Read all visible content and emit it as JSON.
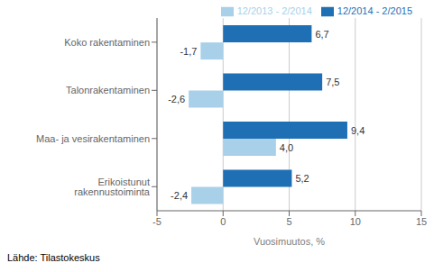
{
  "chart_data": {
    "type": "bar",
    "orientation": "horizontal",
    "categories": [
      "Koko rakentaminen",
      "Talonrakentaminen",
      "Maa- ja vesirakentaminen",
      "Erikoistunut rakennustoiminta"
    ],
    "series": [
      {
        "name": "12/2014 - 2/2015",
        "color": "#1f6fb5",
        "values": [
          6.7,
          7.5,
          9.4,
          5.2
        ],
        "value_labels": [
          "6,7",
          "7,5",
          "9,4",
          "5,2"
        ]
      },
      {
        "name": "12/2013 - 2/2014",
        "color": "#a8d0e8",
        "values": [
          -1.7,
          -2.6,
          4.0,
          -2.4
        ],
        "value_labels": [
          "-1,7",
          "-2,6",
          "4,0",
          "-2,4"
        ]
      }
    ],
    "xlabel": "Vuosimuutos, %",
    "xlim": [
      -5,
      15
    ],
    "xticks": [
      -5,
      0,
      5,
      10,
      15
    ],
    "grid": true,
    "legend": "upper right",
    "data_labels": true,
    "annotations": [
      "Lähde: Tilastokeskus"
    ]
  }
}
